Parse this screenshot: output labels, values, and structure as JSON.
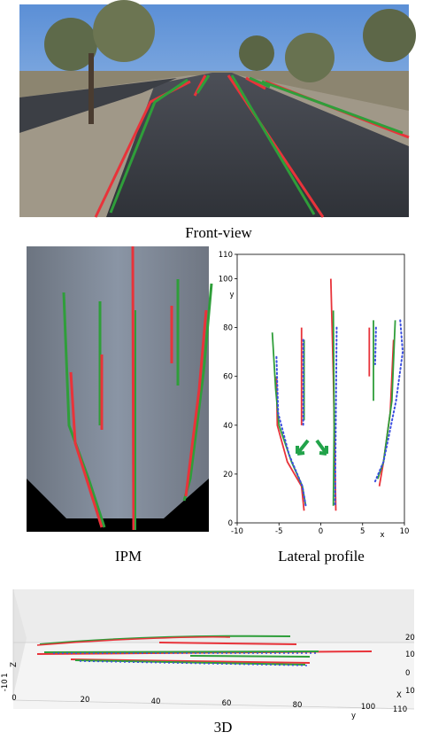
{
  "captions": {
    "front": "Front-view",
    "ipm": "IPM",
    "profile": "Lateral profile",
    "three_d": "3D"
  },
  "chart_data": {
    "type": "line",
    "xlabel": "x",
    "ylabel": "y",
    "xlim": [
      -10,
      10
    ],
    "ylim": [
      0,
      110
    ],
    "xticks": [
      -10,
      -5,
      0,
      5,
      10
    ],
    "yticks": [
      0,
      20,
      40,
      60,
      80,
      100,
      110
    ],
    "series": [
      {
        "color": "#e8333a",
        "x": [
          -5.3,
          -5.2,
          -4,
          -2.3,
          -2
        ],
        "y": [
          60,
          40,
          25,
          15,
          5
        ]
      },
      {
        "color": "#2f9e3a",
        "x": [
          -5.8,
          -5.4,
          -5,
          -3.5,
          -2.2,
          -1.8
        ],
        "y": [
          78,
          55,
          40,
          25,
          15,
          7
        ]
      },
      {
        "color": "#3b4fe0",
        "style": "dotted",
        "x": [
          -5.3,
          -5.1,
          -3.8,
          -2.2,
          -1.8
        ],
        "y": [
          68,
          45,
          28,
          15,
          7
        ]
      },
      {
        "color": "#e8333a",
        "x": [
          -2.3,
          -2.3
        ],
        "y": [
          80,
          40
        ]
      },
      {
        "color": "#2f9e3a",
        "x": [
          -2,
          -2
        ],
        "y": [
          75,
          42
        ]
      },
      {
        "color": "#3b4fe0",
        "style": "dotted",
        "x": [
          -2.1,
          -2.1
        ],
        "y": [
          75,
          40
        ]
      },
      {
        "color": "#e8333a",
        "x": [
          1.2,
          1.5,
          1.8
        ],
        "y": [
          100,
          60,
          5
        ]
      },
      {
        "color": "#2f9e3a",
        "x": [
          1.5,
          1.6,
          1.5
        ],
        "y": [
          87,
          40,
          7
        ]
      },
      {
        "color": "#3b4fe0",
        "style": "dotted",
        "x": [
          1.9,
          1.7
        ],
        "y": [
          80,
          7
        ]
      },
      {
        "color": "#e8333a",
        "x": [
          5.8,
          5.8
        ],
        "y": [
          80,
          60
        ]
      },
      {
        "color": "#2f9e3a",
        "x": [
          6.3,
          6.3
        ],
        "y": [
          83,
          50
        ]
      },
      {
        "color": "#3b4fe0",
        "style": "dotted",
        "x": [
          6.6,
          6.5
        ],
        "y": [
          80,
          65
        ]
      },
      {
        "color": "#e8333a",
        "x": [
          8.7,
          8.3,
          7.5,
          7
        ],
        "y": [
          75,
          45,
          25,
          15
        ]
      },
      {
        "color": "#2f9e3a",
        "x": [
          8.9,
          8.5,
          7.5,
          6.8
        ],
        "y": [
          83,
          50,
          25,
          18
        ]
      },
      {
        "color": "#3b4fe0",
        "style": "dotted",
        "x": [
          9.5,
          9.8,
          9,
          7.5,
          6.5
        ],
        "y": [
          83,
          70,
          50,
          25,
          17
        ]
      }
    ]
  },
  "plot_3d": {
    "x_label": "X",
    "y_label": "y",
    "z_label": "Z",
    "x_ticks": [
      "20",
      "10",
      "0",
      "10"
    ],
    "y_ticks": [
      "0",
      "20",
      "40",
      "60",
      "80",
      "100",
      "110"
    ],
    "z_ticks": [
      "1",
      "0",
      "-1"
    ]
  }
}
